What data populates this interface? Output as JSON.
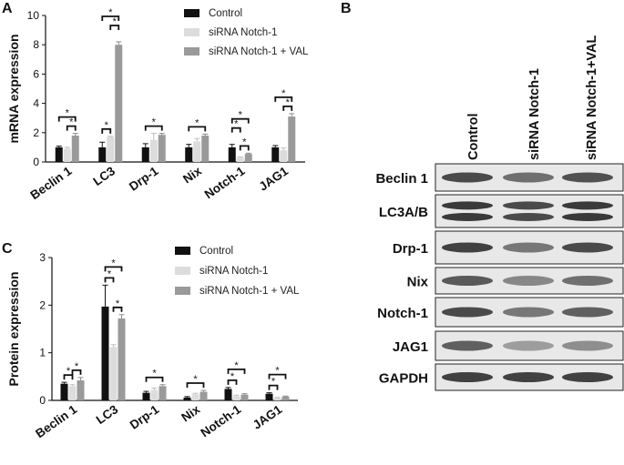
{
  "panels": {
    "a": "A",
    "b": "B",
    "c": "C"
  },
  "colors": {
    "control": "#111111",
    "sirna": "#dcdcdc",
    "sirna_val": "#9a9a9a"
  },
  "chart_data": [
    {
      "panel": "A",
      "type": "bar",
      "ylabel": "mRNA expression",
      "ylim": [
        0,
        10
      ],
      "yticks": [
        0,
        2,
        4,
        6,
        8,
        10
      ],
      "categories": [
        "Beclin 1",
        "LC3",
        "Drp-1",
        "Nix",
        "Notch-1",
        "JAG1"
      ],
      "legend_position": "top-right",
      "series": [
        {
          "name": "Control",
          "values": [
            1.0,
            1.0,
            1.0,
            1.0,
            1.0,
            1.0
          ],
          "errors": [
            0.08,
            0.35,
            0.25,
            0.2,
            0.2,
            0.12
          ]
        },
        {
          "name": "siRNA Notch-1",
          "values": [
            0.9,
            1.7,
            1.5,
            1.4,
            0.3,
            0.8
          ],
          "errors": [
            0.1,
            0.05,
            0.45,
            0.2,
            0.05,
            0.15
          ]
        },
        {
          "name": "siRNA Notch-1 + VAL",
          "values": [
            1.8,
            8.0,
            1.85,
            1.8,
            0.55,
            3.1
          ],
          "errors": [
            0.15,
            0.2,
            0.1,
            0.1,
            0.05,
            0.2
          ]
        }
      ],
      "significance": [
        {
          "category": 0,
          "pair": [
            0,
            2
          ],
          "level": 1,
          "label": "*"
        },
        {
          "category": 0,
          "pair": [
            1,
            2
          ],
          "level": 0,
          "label": "*"
        },
        {
          "category": 1,
          "pair": [
            0,
            1
          ],
          "level": 0,
          "label": "*"
        },
        {
          "category": 1,
          "pair": [
            0,
            2
          ],
          "level": 2,
          "label": "*"
        },
        {
          "category": 1,
          "pair": [
            1,
            2
          ],
          "level": 1,
          "label": "*"
        },
        {
          "category": 2,
          "pair": [
            0,
            2
          ],
          "level": 0,
          "label": "*"
        },
        {
          "category": 3,
          "pair": [
            0,
            2
          ],
          "level": 0,
          "label": "*"
        },
        {
          "category": 4,
          "pair": [
            0,
            1
          ],
          "level": 1,
          "label": "*"
        },
        {
          "category": 4,
          "pair": [
            0,
            2
          ],
          "level": 2,
          "label": "*"
        },
        {
          "category": 4,
          "pair": [
            1,
            2
          ],
          "level": 0,
          "label": "*"
        },
        {
          "category": 5,
          "pair": [
            0,
            2
          ],
          "level": 1,
          "label": "*"
        },
        {
          "category": 5,
          "pair": [
            1,
            2
          ],
          "level": 0,
          "label": "*"
        }
      ]
    },
    {
      "panel": "C",
      "type": "bar",
      "ylabel": "Protein expression",
      "ylim": [
        0,
        3
      ],
      "yticks": [
        0,
        1,
        2,
        3
      ],
      "categories": [
        "Beclin 1",
        "LC3",
        "Drp-1",
        "Nix",
        "Notch-1",
        "JAG1"
      ],
      "legend_position": "top-right",
      "series": [
        {
          "name": "Control",
          "values": [
            0.35,
            1.97,
            0.16,
            0.06,
            0.24,
            0.14
          ],
          "errors": [
            0.03,
            0.45,
            0.03,
            0.02,
            0.03,
            0.02
          ]
        },
        {
          "name": "siRNA Notch-1",
          "values": [
            0.3,
            1.12,
            0.22,
            0.13,
            0.09,
            0.05
          ],
          "errors": [
            0.03,
            0.05,
            0.04,
            0.02,
            0.02,
            0.01
          ]
        },
        {
          "name": "siRNA Notch-1 + VAL",
          "values": [
            0.42,
            1.72,
            0.3,
            0.18,
            0.12,
            0.08
          ],
          "errors": [
            0.06,
            0.08,
            0.03,
            0.03,
            0.02,
            0.01
          ]
        }
      ],
      "significance": [
        {
          "category": 0,
          "pair": [
            0,
            1
          ],
          "level": 0,
          "label": "*"
        },
        {
          "category": 0,
          "pair": [
            1,
            2
          ],
          "level": 0,
          "label": "*"
        },
        {
          "category": 1,
          "pair": [
            0,
            1
          ],
          "level": 0,
          "label": "*"
        },
        {
          "category": 1,
          "pair": [
            0,
            2
          ],
          "level": 1,
          "label": "*"
        },
        {
          "category": 1,
          "pair": [
            1,
            2
          ],
          "level": 0,
          "label": "*"
        },
        {
          "category": 2,
          "pair": [
            0,
            2
          ],
          "level": 0,
          "label": "*"
        },
        {
          "category": 3,
          "pair": [
            0,
            2
          ],
          "level": 0,
          "label": "*"
        },
        {
          "category": 4,
          "pair": [
            0,
            1
          ],
          "level": 0,
          "label": "*"
        },
        {
          "category": 4,
          "pair": [
            0,
            2
          ],
          "level": 1,
          "label": "*"
        },
        {
          "category": 5,
          "pair": [
            0,
            1
          ],
          "level": 0,
          "label": "*"
        },
        {
          "category": 5,
          "pair": [
            0,
            2
          ],
          "level": 1,
          "label": "*"
        }
      ]
    }
  ],
  "blot": {
    "lanes": [
      "Control",
      "siRNA Notch-1",
      "siRNA Notch-1+VAL"
    ],
    "rows": [
      {
        "label": "Beclin 1",
        "intensity": [
          0.85,
          0.6,
          0.8
        ],
        "double": false
      },
      {
        "label": "LC3A/B",
        "intensity": [
          0.95,
          0.85,
          0.95
        ],
        "double": true
      },
      {
        "label": "Drp-1",
        "intensity": [
          0.9,
          0.55,
          0.85
        ],
        "double": false
      },
      {
        "label": "Nix",
        "intensity": [
          0.75,
          0.45,
          0.6
        ],
        "double": false
      },
      {
        "label": "Notch-1",
        "intensity": [
          0.85,
          0.55,
          0.7
        ],
        "double": false
      },
      {
        "label": "JAG1",
        "intensity": [
          0.7,
          0.3,
          0.4
        ],
        "double": false
      },
      {
        "label": "GAPDH",
        "intensity": [
          0.9,
          0.9,
          0.9
        ],
        "double": false
      }
    ]
  }
}
